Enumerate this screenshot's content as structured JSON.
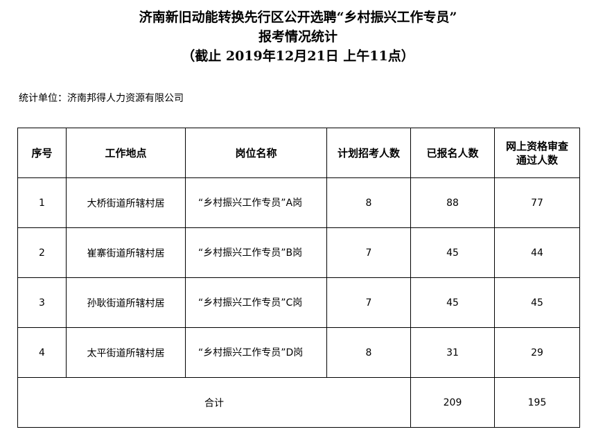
{
  "title": {
    "line1": "济南新旧动能转换先行区公开选聘“乡村振兴工作专员”",
    "line2": "报考情况统计",
    "line3": "（截止 2019年12月21日 上午11点）"
  },
  "unit": "统计单位：济南邦得人力资源有限公司",
  "table": {
    "headers": [
      "序号",
      "工作地点",
      "岗位名称",
      "计划招考人数",
      "已报名人数",
      "网上资格审查通过人数"
    ],
    "rows": [
      [
        "1",
        "大桥街道所辖村居",
        "“乡村振兴工作专员”A岗",
        "8",
        "88",
        "77"
      ],
      [
        "2",
        "崔寨街道所辖村居",
        "“乡村振兴工作专员”B岗",
        "7",
        "45",
        "44"
      ],
      [
        "3",
        "孙耿街道所辖村居",
        "“乡村振兴工作专员”C岗",
        "7",
        "45",
        "45"
      ],
      [
        "4",
        "太平街道所辖村居",
        "“乡村振兴工作专员”D岗",
        "8",
        "31",
        "29"
      ]
    ],
    "total": {
      "label": "合计",
      "registered": "209",
      "passed": "195"
    }
  }
}
